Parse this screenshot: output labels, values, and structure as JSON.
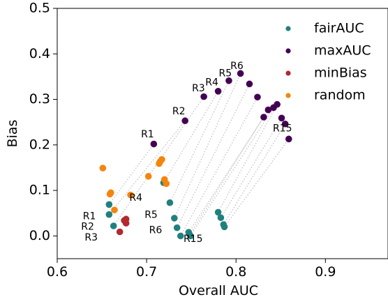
{
  "chart_data": {
    "type": "scatter",
    "xlabel": "Overall AUC",
    "ylabel": "Bias",
    "xlim": [
      0.6,
      0.97
    ],
    "ylim": [
      -0.05,
      0.5
    ],
    "xticks": [
      "0.6",
      "0.7",
      "0.8",
      "0.9"
    ],
    "yticks": [
      "0.0",
      "0.1",
      "0.2",
      "0.3",
      "0.4",
      "0.5"
    ],
    "legend_position": "top-right",
    "series": [
      {
        "name": "fairAUC",
        "color": "#21807f",
        "points": [
          [
            0.658,
            0.069
          ],
          [
            0.658,
            0.047
          ],
          [
            0.663,
            0.022
          ],
          [
            0.719,
            0.117
          ],
          [
            0.726,
            0.073
          ],
          [
            0.731,
            0.039
          ],
          [
            0.734,
            0.018
          ],
          [
            0.738,
            0.0
          ],
          [
            0.747,
            0.008
          ],
          [
            0.748,
            0.003
          ],
          [
            0.749,
            0.0
          ],
          [
            0.78,
            0.052
          ],
          [
            0.783,
            0.04
          ],
          [
            0.786,
            0.025
          ],
          [
            0.787,
            0.02
          ]
        ]
      },
      {
        "name": "maxAUC",
        "color": "#440154",
        "points": [
          [
            0.708,
            0.202
          ],
          [
            0.743,
            0.253
          ],
          [
            0.764,
            0.306
          ],
          [
            0.78,
            0.318
          ],
          [
            0.792,
            0.341
          ],
          [
            0.805,
            0.357
          ],
          [
            0.815,
            0.334
          ],
          [
            0.824,
            0.305
          ],
          [
            0.831,
            0.261
          ],
          [
            0.836,
            0.277
          ],
          [
            0.842,
            0.282
          ],
          [
            0.846,
            0.289
          ],
          [
            0.851,
            0.259
          ],
          [
            0.855,
            0.246
          ],
          [
            0.859,
            0.213
          ]
        ]
      },
      {
        "name": "minBias",
        "color": "#b2292e",
        "points": [
          [
            0.677,
            0.037
          ],
          [
            0.676,
            0.032
          ],
          [
            0.677,
            0.028
          ],
          [
            0.675,
            0.034
          ],
          [
            0.67,
            0.009
          ]
        ]
      },
      {
        "name": "random",
        "color": "#f4850c",
        "points": [
          [
            0.651,
            0.149
          ],
          [
            0.66,
            0.095
          ],
          [
            0.659,
            0.092
          ],
          [
            0.664,
            0.057
          ],
          [
            0.682,
            0.09
          ],
          [
            0.702,
            0.131
          ],
          [
            0.714,
            0.159
          ],
          [
            0.715,
            0.163
          ],
          [
            0.717,
            0.168
          ],
          [
            0.72,
            0.124
          ],
          [
            0.722,
            0.115
          ]
        ]
      }
    ],
    "connectors": {
      "color": "#bbbbbb",
      "pairs": [
        [
          [
            0.658,
            0.069
          ],
          [
            0.708,
            0.202
          ]
        ],
        [
          [
            0.658,
            0.047
          ],
          [
            0.743,
            0.253
          ]
        ],
        [
          [
            0.663,
            0.022
          ],
          [
            0.764,
            0.306
          ]
        ],
        [
          [
            0.719,
            0.117
          ],
          [
            0.78,
            0.318
          ]
        ],
        [
          [
            0.726,
            0.073
          ],
          [
            0.792,
            0.341
          ]
        ],
        [
          [
            0.731,
            0.039
          ],
          [
            0.805,
            0.357
          ]
        ],
        [
          [
            0.734,
            0.018
          ],
          [
            0.815,
            0.334
          ]
        ],
        [
          [
            0.738,
            0.0
          ],
          [
            0.824,
            0.305
          ]
        ],
        [
          [
            0.747,
            0.008
          ],
          [
            0.831,
            0.261
          ]
        ],
        [
          [
            0.748,
            0.003
          ],
          [
            0.836,
            0.277
          ]
        ],
        [
          [
            0.749,
            0.0
          ],
          [
            0.842,
            0.282
          ]
        ],
        [
          [
            0.78,
            0.052
          ],
          [
            0.846,
            0.289
          ]
        ],
        [
          [
            0.783,
            0.04
          ],
          [
            0.851,
            0.259
          ]
        ],
        [
          [
            0.786,
            0.025
          ],
          [
            0.855,
            0.246
          ]
        ],
        [
          [
            0.787,
            0.02
          ],
          [
            0.859,
            0.213
          ]
        ]
      ]
    },
    "annotations": [
      {
        "text": "R1",
        "x": 0.701,
        "y": 0.223
      },
      {
        "text": "R2",
        "x": 0.736,
        "y": 0.273
      },
      {
        "text": "R3",
        "x": 0.758,
        "y": 0.324
      },
      {
        "text": "R4",
        "x": 0.773,
        "y": 0.337
      },
      {
        "text": "R5",
        "x": 0.788,
        "y": 0.357
      },
      {
        "text": "R6",
        "x": 0.801,
        "y": 0.373
      },
      {
        "text": "R15",
        "x": 0.852,
        "y": 0.236
      },
      {
        "text": "R4",
        "x": 0.688,
        "y": 0.083
      },
      {
        "text": "R1",
        "x": 0.636,
        "y": 0.043
      },
      {
        "text": "R2",
        "x": 0.634,
        "y": 0.02
      },
      {
        "text": "R3",
        "x": 0.638,
        "y": -0.004
      },
      {
        "text": "R5",
        "x": 0.705,
        "y": 0.046
      },
      {
        "text": "R6",
        "x": 0.71,
        "y": 0.012
      },
      {
        "text": "R15",
        "x": 0.752,
        "y": -0.007
      }
    ]
  }
}
